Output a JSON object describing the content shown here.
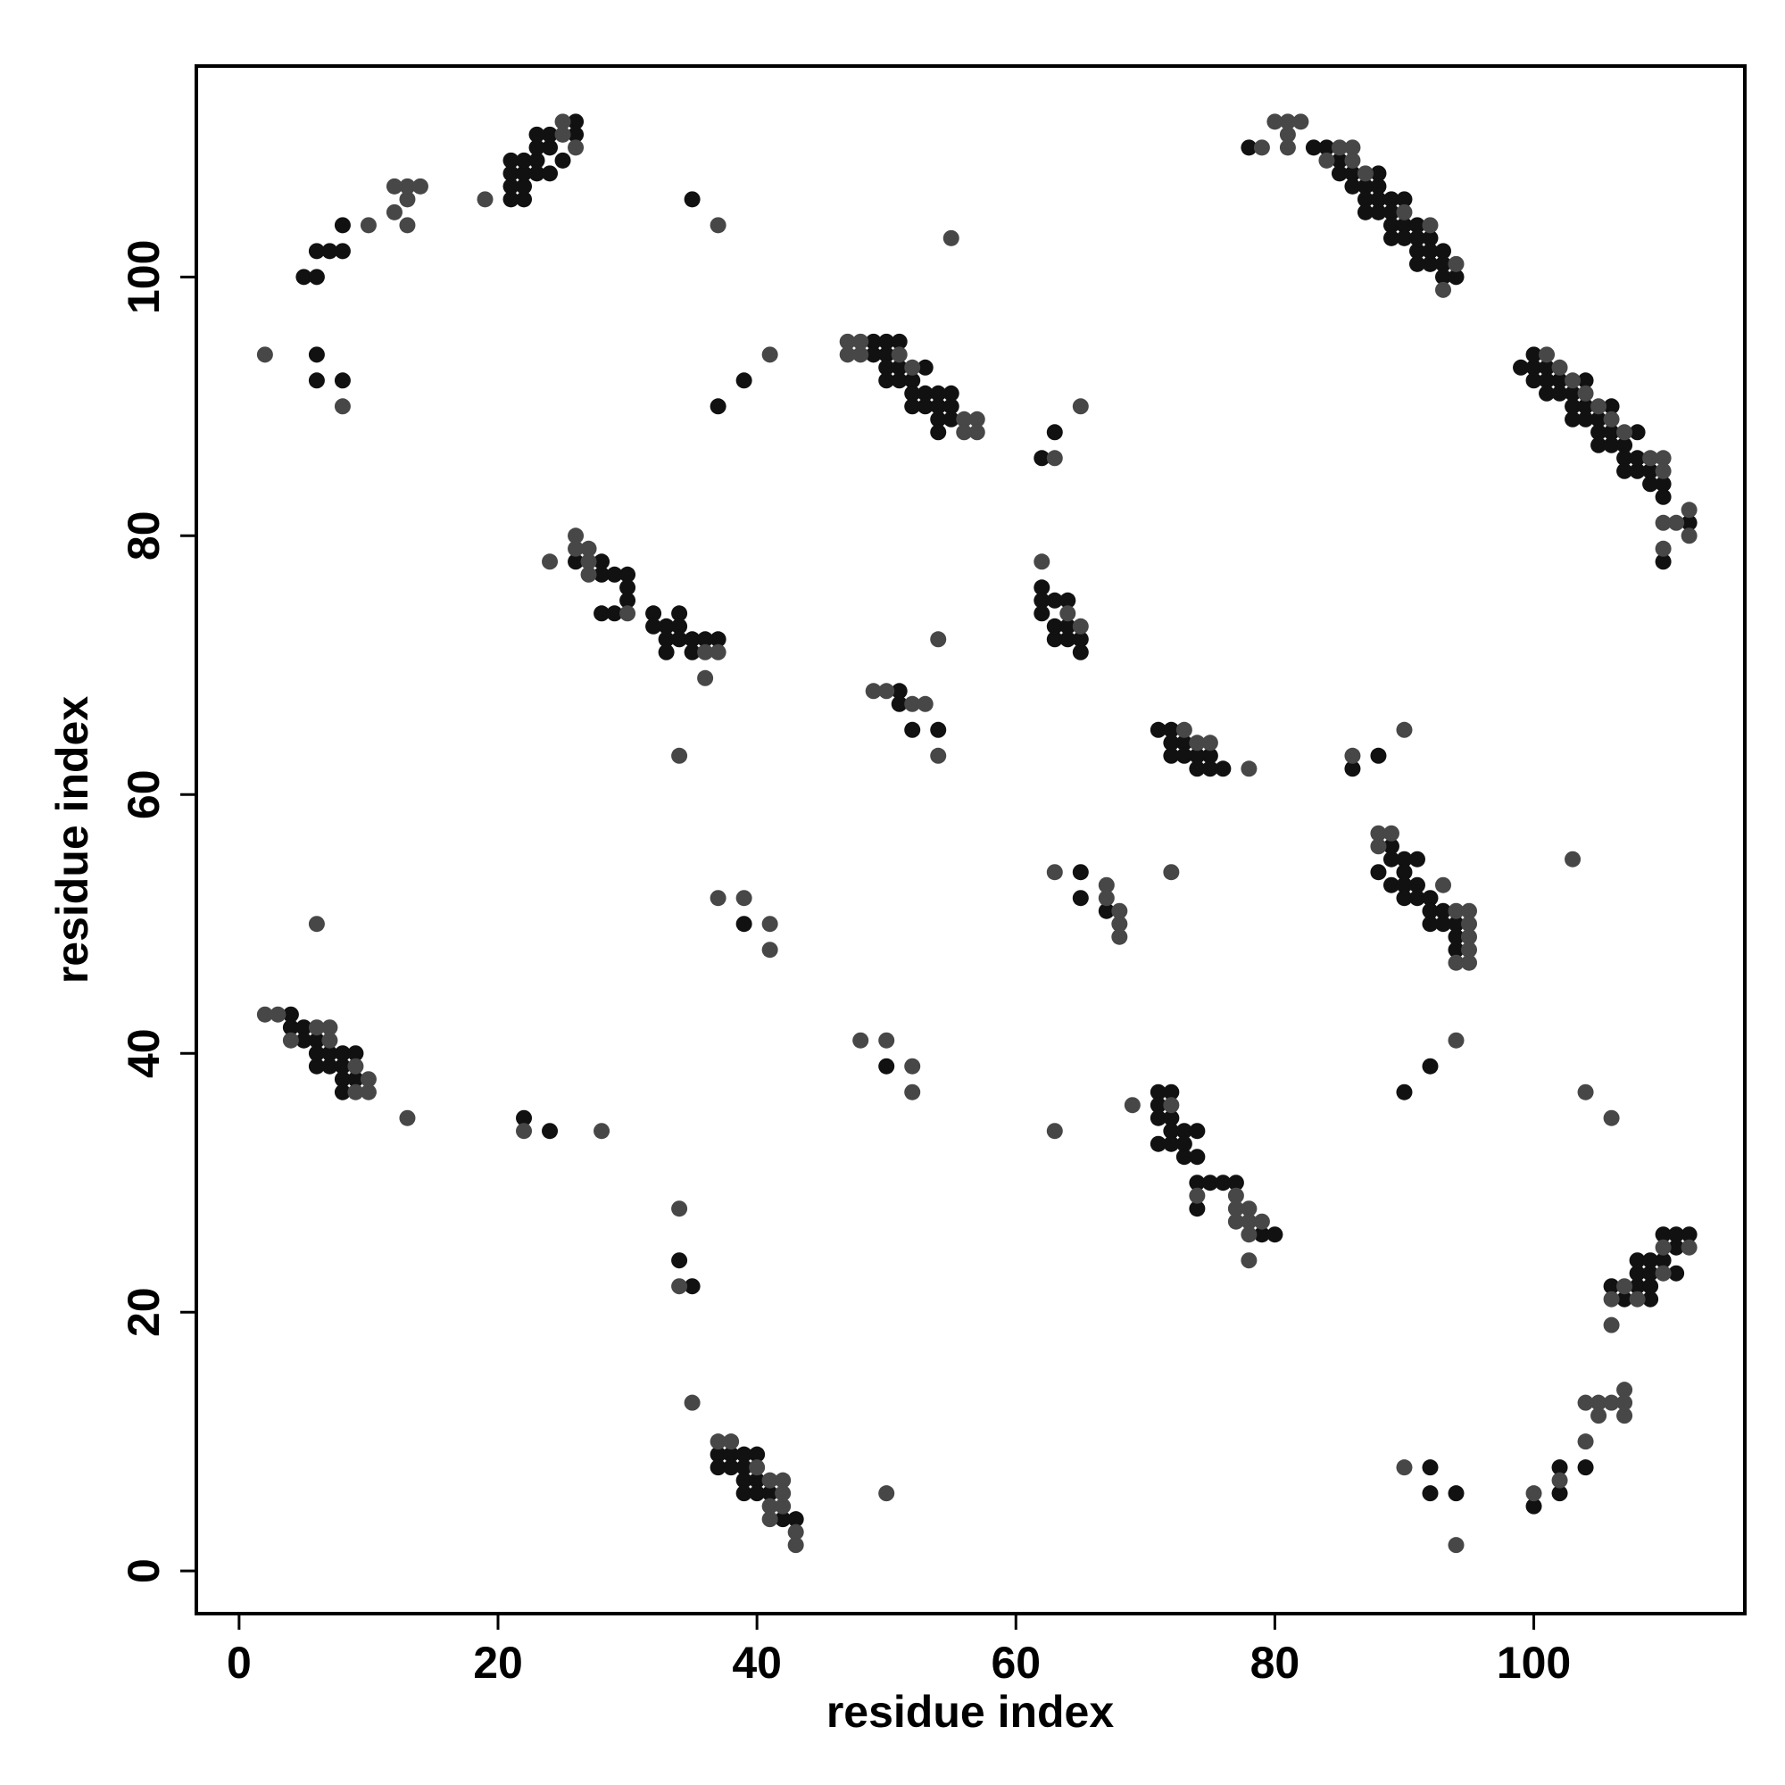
{
  "chart_data": {
    "type": "scatter",
    "x_label": "residue index",
    "y_label": "residue index",
    "xlim": [
      -3.3,
      116.3
    ],
    "ylim": [
      -3.3,
      116.3
    ],
    "xticks": [
      0,
      20,
      40,
      60,
      80,
      100
    ],
    "yticks": [
      0,
      20,
      40,
      60,
      80,
      100
    ],
    "series": [
      {
        "color": "#111111",
        "x": [
          5,
          6,
          6,
          7,
          8,
          8,
          21,
          22,
          21,
          22,
          21,
          22,
          23,
          21,
          22,
          23,
          24,
          23,
          24,
          25,
          24,
          23,
          26,
          26,
          6,
          6,
          8,
          35,
          37,
          39,
          78,
          83,
          84,
          85,
          85,
          86,
          88,
          86,
          87,
          88,
          87,
          88,
          89,
          90,
          87,
          88,
          89,
          89,
          90,
          91,
          89,
          90,
          91,
          92,
          91,
          92,
          93,
          92,
          93,
          91,
          93,
          94,
          99,
          100,
          100,
          101,
          100,
          101,
          102,
          101,
          102,
          104,
          103,
          103,
          104,
          106,
          103,
          104,
          105,
          105,
          106,
          108,
          105,
          106,
          107,
          107,
          108,
          107,
          108,
          109,
          109,
          110,
          110,
          112,
          110,
          49,
          50,
          51,
          49,
          50,
          50,
          51,
          53,
          50,
          51,
          52,
          52,
          53,
          54,
          55,
          52,
          53,
          54,
          55,
          54,
          55,
          54,
          62,
          63,
          26,
          28,
          28,
          29,
          30,
          30,
          30,
          28,
          29,
          32,
          34,
          32,
          33,
          34,
          33,
          34,
          35,
          36,
          37,
          33,
          35,
          62,
          62,
          63,
          64,
          62,
          63,
          64,
          63,
          64,
          65,
          65,
          51,
          51,
          52,
          54,
          71,
          72,
          72,
          73,
          72,
          73,
          74,
          75,
          74,
          75,
          76,
          86,
          88,
          89,
          89,
          90,
          91,
          88,
          90,
          89,
          90,
          91,
          90,
          91,
          92,
          92,
          93,
          92,
          93,
          94,
          94,
          94,
          65,
          65,
          67,
          39,
          4,
          4,
          5,
          5,
          6,
          6,
          7,
          8,
          9,
          6,
          7,
          8,
          8,
          9,
          8,
          22,
          24,
          50,
          90,
          92,
          71,
          72,
          71,
          71,
          72,
          72,
          73,
          74,
          71,
          72,
          73,
          74,
          73,
          74,
          75,
          76,
          77,
          74,
          79,
          80,
          34,
          35,
          106,
          108,
          107,
          109,
          108,
          109,
          111,
          108,
          109,
          110,
          111,
          110,
          111,
          112,
          109,
          104,
          102,
          102,
          100,
          92,
          92,
          94,
          37,
          38,
          39,
          40,
          37,
          38,
          39,
          39,
          40,
          39,
          40,
          41,
          42,
          43
        ],
        "values": [
          100,
          100,
          102,
          102,
          102,
          104,
          106,
          106,
          107,
          107,
          108,
          108,
          108,
          109,
          109,
          109,
          108,
          110,
          110,
          109,
          111,
          111,
          112,
          111,
          94,
          92,
          92,
          106,
          90,
          92,
          110,
          110,
          110,
          109,
          108,
          108,
          108,
          107,
          107,
          107,
          106,
          106,
          106,
          106,
          105,
          105,
          105,
          104,
          104,
          104,
          103,
          103,
          103,
          103,
          102,
          102,
          102,
          101,
          101,
          101,
          100,
          100,
          93,
          93,
          94,
          93,
          92,
          92,
          92,
          91,
          91,
          92,
          91,
          90,
          90,
          90,
          89,
          89,
          89,
          88,
          88,
          88,
          87,
          87,
          87,
          86,
          86,
          85,
          85,
          85,
          84,
          84,
          83,
          81,
          78,
          95,
          95,
          95,
          94,
          94,
          93,
          93,
          93,
          92,
          92,
          92,
          91,
          91,
          91,
          91,
          90,
          90,
          90,
          90,
          89,
          89,
          88,
          86,
          88,
          78,
          78,
          77,
          77,
          77,
          76,
          75,
          74,
          74,
          74,
          74,
          73,
          73,
          73,
          72,
          72,
          72,
          72,
          72,
          71,
          71,
          76,
          75,
          75,
          75,
          74,
          73,
          73,
          72,
          72,
          72,
          71,
          68,
          67,
          65,
          65,
          65,
          65,
          64,
          64,
          63,
          63,
          63,
          63,
          62,
          62,
          62,
          62,
          63,
          56,
          55,
          55,
          55,
          54,
          54,
          53,
          53,
          53,
          52,
          52,
          52,
          51,
          51,
          50,
          50,
          50,
          49,
          48,
          54,
          52,
          51,
          50,
          43,
          42,
          42,
          41,
          41,
          40,
          40,
          40,
          40,
          39,
          39,
          39,
          38,
          38,
          37,
          35,
          34,
          39,
          37,
          39,
          37,
          37,
          36,
          35,
          35,
          34,
          34,
          34,
          33,
          33,
          33,
          32,
          32,
          30,
          30,
          30,
          30,
          28,
          26,
          26,
          24,
          22,
          22,
          22,
          21,
          21,
          23,
          23,
          23,
          24,
          24,
          24,
          25,
          26,
          26,
          26,
          22,
          8,
          8,
          6,
          5,
          8,
          6,
          6,
          9,
          9,
          9,
          9,
          8,
          8,
          8,
          7,
          7,
          6,
          6,
          6,
          4,
          4
        ]
      },
      {
        "color": "#474747",
        "x": [
          10,
          12,
          13,
          13,
          12,
          13,
          14,
          19,
          25,
          26,
          25,
          2,
          8,
          37,
          41,
          55,
          79,
          80,
          81,
          82,
          81,
          81,
          85,
          86,
          84,
          86,
          87,
          90,
          92,
          94,
          93,
          101,
          102,
          103,
          104,
          105,
          106,
          107,
          109,
          110,
          110,
          110,
          111,
          112,
          112,
          110,
          47,
          48,
          47,
          48,
          51,
          52,
          56,
          57,
          56,
          57,
          63,
          65,
          24,
          26,
          26,
          27,
          27,
          27,
          30,
          36,
          37,
          36,
          34,
          62,
          64,
          65,
          54,
          49,
          50,
          52,
          53,
          54,
          73,
          74,
          75,
          78,
          86,
          90,
          88,
          89,
          88,
          93,
          94,
          95,
          95,
          95,
          95,
          94,
          95,
          103,
          63,
          67,
          67,
          68,
          68,
          68,
          72,
          37,
          39,
          41,
          41,
          6,
          2,
          3,
          6,
          7,
          4,
          7,
          9,
          10,
          9,
          10,
          13,
          22,
          28,
          48,
          50,
          52,
          52,
          94,
          104,
          106,
          63,
          69,
          72,
          74,
          77,
          77,
          78,
          77,
          78,
          79,
          78,
          78,
          34,
          34,
          35,
          107,
          106,
          108,
          110,
          110,
          112,
          106,
          104,
          105,
          106,
          105,
          107,
          107,
          107,
          104,
          102,
          100,
          90,
          94,
          50,
          37,
          38,
          40,
          41,
          42,
          42,
          41,
          42,
          41,
          43,
          43
        ],
        "values": [
          104,
          105,
          104,
          106,
          107,
          107,
          107,
          106,
          111,
          110,
          112,
          94,
          90,
          104,
          94,
          103,
          110,
          112,
          112,
          112,
          111,
          110,
          110,
          110,
          109,
          109,
          108,
          105,
          104,
          101,
          99,
          94,
          93,
          92,
          91,
          90,
          89,
          88,
          86,
          86,
          85,
          81,
          81,
          82,
          80,
          79,
          95,
          95,
          94,
          94,
          94,
          93,
          89,
          89,
          88,
          88,
          86,
          90,
          78,
          80,
          79,
          79,
          78,
          77,
          74,
          71,
          71,
          69,
          63,
          78,
          74,
          73,
          72,
          68,
          68,
          67,
          67,
          63,
          65,
          64,
          64,
          62,
          63,
          65,
          57,
          57,
          56,
          53,
          51,
          51,
          50,
          49,
          48,
          47,
          47,
          55,
          54,
          53,
          52,
          51,
          50,
          49,
          54,
          52,
          52,
          50,
          48,
          50,
          43,
          43,
          42,
          42,
          41,
          41,
          39,
          38,
          37,
          37,
          35,
          34,
          34,
          41,
          41,
          39,
          37,
          41,
          37,
          35,
          34,
          36,
          36,
          29,
          29,
          28,
          28,
          27,
          27,
          27,
          26,
          24,
          28,
          22,
          13,
          22,
          21,
          21,
          23,
          25,
          25,
          19,
          13,
          13,
          13,
          12,
          12,
          14,
          13,
          10,
          7,
          6,
          8,
          2,
          6,
          10,
          10,
          8,
          7,
          7,
          6,
          5,
          5,
          4,
          3,
          2
        ]
      }
    ]
  }
}
